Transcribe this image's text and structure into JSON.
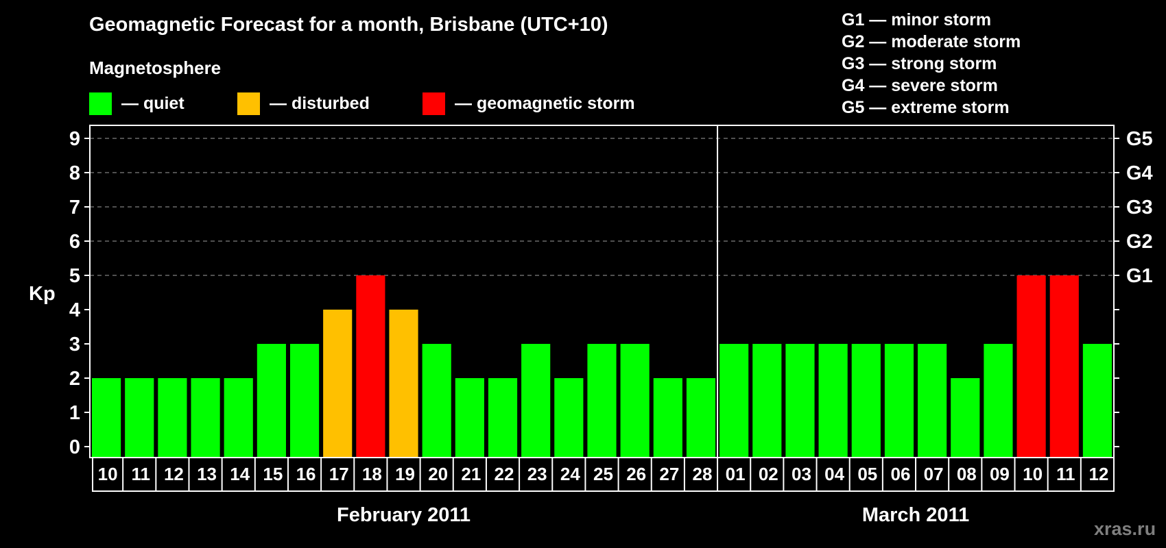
{
  "header": {
    "title": "Geomagnetic Forecast for a month, Brisbane (UTC+10)",
    "subtitle": "Magnetosphere"
  },
  "legend": [
    {
      "label": "— quiet",
      "color": "#00ff00"
    },
    {
      "label": "— disturbed",
      "color": "#ffc000"
    },
    {
      "label": "— geomagnetic storm",
      "color": "#ff0000"
    }
  ],
  "storm_scale": [
    "G1 — minor storm",
    "G2 — moderate storm",
    "G3 — strong storm",
    "G4 — severe storm",
    "G5 — extreme storm"
  ],
  "months": [
    "February 2011",
    "March 2011"
  ],
  "watermark": "xras.ru",
  "colors": {
    "quiet": "#00ff00",
    "disturbed": "#ffc000",
    "storm": "#ff0000",
    "grid": "#808080",
    "axis": "#ffffff",
    "background": "#000000"
  },
  "chart_data": {
    "type": "bar",
    "title": "Geomagnetic Forecast for a month, Brisbane (UTC+10)",
    "xlabel": "",
    "ylabel": "Kp",
    "ylim": [
      0,
      9
    ],
    "yticks": [
      0,
      1,
      2,
      3,
      4,
      5,
      6,
      7,
      8,
      9
    ],
    "right_axis_ticks": [
      {
        "kp": 5,
        "label": "G1"
      },
      {
        "kp": 6,
        "label": "G2"
      },
      {
        "kp": 7,
        "label": "G3"
      },
      {
        "kp": 8,
        "label": "G4"
      },
      {
        "kp": 9,
        "label": "G5"
      }
    ],
    "grid": "dashed horizontal at Kp 5-9",
    "categories": [
      "10",
      "11",
      "12",
      "13",
      "14",
      "15",
      "16",
      "17",
      "18",
      "19",
      "20",
      "21",
      "22",
      "23",
      "24",
      "25",
      "26",
      "27",
      "28",
      "01",
      "02",
      "03",
      "04",
      "05",
      "06",
      "07",
      "08",
      "09",
      "10",
      "11",
      "12"
    ],
    "month_groups": [
      {
        "name": "February 2011",
        "start": 0,
        "end": 18
      },
      {
        "name": "March 2011",
        "start": 19,
        "end": 30
      }
    ],
    "values": [
      2,
      2,
      2,
      2,
      2,
      3,
      3,
      4,
      5,
      4,
      3,
      2,
      2,
      3,
      2,
      3,
      3,
      2,
      2,
      3,
      3,
      3,
      3,
      3,
      3,
      3,
      2,
      3,
      5,
      5,
      3
    ],
    "status": [
      "quiet",
      "quiet",
      "quiet",
      "quiet",
      "quiet",
      "quiet",
      "quiet",
      "disturbed",
      "storm",
      "disturbed",
      "quiet",
      "quiet",
      "quiet",
      "quiet",
      "quiet",
      "quiet",
      "quiet",
      "quiet",
      "quiet",
      "quiet",
      "quiet",
      "quiet",
      "quiet",
      "quiet",
      "quiet",
      "quiet",
      "quiet",
      "quiet",
      "storm",
      "storm",
      "quiet"
    ],
    "legend": [
      "quiet",
      "disturbed",
      "geomagnetic storm"
    ]
  }
}
